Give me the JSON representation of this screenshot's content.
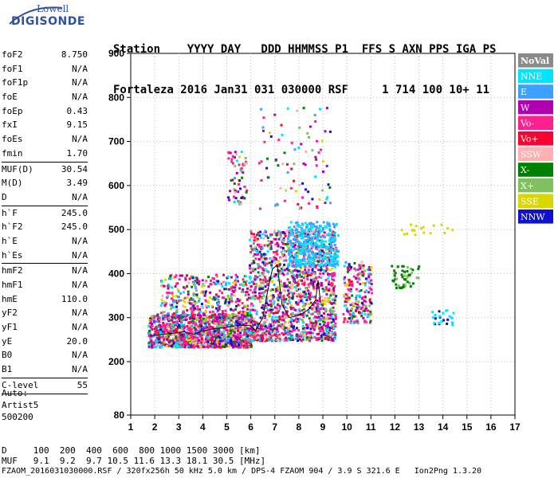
{
  "logo": {
    "top": "Lowell",
    "bottom": "DIGISONDE"
  },
  "header": {
    "line1": "Station    YYYY DAY   DDD HHMMSS P1  FFS S AXN PPS IGA PS",
    "line2": "Fortaleza 2016 Jan31 031 030000 RSF     1 714 100 10+ 11"
  },
  "params": {
    "g1": [
      {
        "name": "foF2",
        "value": "8.750"
      },
      {
        "name": "foF1",
        "value": "N/A"
      },
      {
        "name": "foF1p",
        "value": "N/A"
      },
      {
        "name": "foE",
        "value": "N/A"
      },
      {
        "name": "foEp",
        "value": "0.43"
      },
      {
        "name": "fxI",
        "value": "9.15"
      },
      {
        "name": "foEs",
        "value": "N/A"
      },
      {
        "name": "fmin",
        "value": "1.70"
      }
    ],
    "g2": [
      {
        "name": "MUF(D)",
        "value": "30.54"
      },
      {
        "name": "M(D)",
        "value": "3.49"
      },
      {
        "name": "D",
        "value": "N/A"
      }
    ],
    "g3": [
      {
        "name": "h`F",
        "value": "245.0"
      },
      {
        "name": "h`F2",
        "value": "245.0"
      },
      {
        "name": "h`E",
        "value": "N/A"
      },
      {
        "name": "h`Es",
        "value": "N/A"
      }
    ],
    "g4": [
      {
        "name": "hmF2",
        "value": "N/A"
      },
      {
        "name": "hmF1",
        "value": "N/A"
      },
      {
        "name": "hmE",
        "value": "110.0"
      },
      {
        "name": "yF2",
        "value": "N/A"
      },
      {
        "name": "yF1",
        "value": "N/A"
      },
      {
        "name": "yE",
        "value": "20.0"
      },
      {
        "name": "B0",
        "value": "N/A"
      },
      {
        "name": "B1",
        "value": "N/A"
      }
    ],
    "g5": [
      {
        "name": "C-level",
        "value": "55"
      }
    ]
  },
  "auto": {
    "l1": "Auto:",
    "l2": "Artist5",
    "l3": "500200"
  },
  "footer": {
    "d_line": "D     100  200  400  600  800 1000 1500 3000 [km]",
    "muf_line": "MUF   9.1  9.2  9.7 10.5 11.6 13.3 18.1 30.5 [MHz]",
    "file_line": "FZAOM_2016031030000.RSF / 320fx256h 50 kHz 5.0 km / DPS-4 FZAOM 904 / 3.9 S 321.6 E   Ion2Png 1.3.20"
  },
  "chart_data": {
    "type": "scatter",
    "xlim": [
      1,
      17
    ],
    "ylim": [
      80,
      900
    ],
    "x_ticks": [
      "1",
      "2",
      "3",
      "4",
      "5",
      "6",
      "7",
      "8",
      "9",
      "10",
      "11",
      "12",
      "13",
      "14",
      "15",
      "16",
      "17"
    ],
    "y_ticks": [
      "80",
      "200",
      "300",
      "400",
      "500",
      "600",
      "700",
      "800",
      "900"
    ],
    "grid": true,
    "legend_position": "right",
    "legend": [
      {
        "label": "NoVal",
        "color": "#8a8a8a"
      },
      {
        "label": "NNE",
        "color": "#00e5ff"
      },
      {
        "label": "E",
        "color": "#3ca0ff"
      },
      {
        "label": "W",
        "color": "#b000b0"
      },
      {
        "label": "Vo-",
        "color": "#ff2090"
      },
      {
        "label": "Vo+",
        "color": "#ff0030"
      },
      {
        "label": "SSW",
        "color": "#ffb0b0"
      },
      {
        "label": "X-",
        "color": "#008000"
      },
      {
        "label": "X+",
        "color": "#80c060"
      },
      {
        "label": "SSE",
        "color": "#d8d800"
      },
      {
        "label": "NNW",
        "color": "#1010d0"
      }
    ],
    "trace": {
      "color": "#000000",
      "points": [
        [
          1.8,
          258
        ],
        [
          2.3,
          262
        ],
        [
          2.8,
          265
        ],
        [
          3.2,
          268
        ],
        [
          3.6,
          262
        ],
        [
          4.0,
          270
        ],
        [
          4.5,
          275
        ],
        [
          5.0,
          278
        ],
        [
          5.5,
          283
        ],
        [
          6.0,
          282
        ],
        [
          6.2,
          270
        ],
        [
          6.5,
          300
        ],
        [
          6.7,
          360
        ],
        [
          6.9,
          410
        ],
        [
          7.1,
          420
        ],
        [
          7.3,
          330
        ],
        [
          7.6,
          300
        ],
        [
          8.0,
          305
        ],
        [
          8.4,
          318
        ],
        [
          8.7,
          340
        ],
        [
          8.8,
          385
        ],
        [
          8.9,
          335
        ]
      ]
    },
    "echo_regions": [
      {
        "x": [
          1.7,
          6.0
        ],
        "y": [
          235,
          310
        ],
        "count": 1300
      },
      {
        "x": [
          2.2,
          5.9
        ],
        "y": [
          300,
          400
        ],
        "count": 450
      },
      {
        "x": [
          5.9,
          9.5
        ],
        "y": [
          250,
          500
        ],
        "count": 1500
      },
      {
        "x": [
          7.5,
          9.6
        ],
        "y": [
          420,
          520
        ],
        "count": 350
      },
      {
        "x": [
          9.8,
          11.0
        ],
        "y": [
          290,
          430
        ],
        "count": 220
      },
      {
        "x": [
          11.8,
          13.0
        ],
        "y": [
          370,
          420
        ],
        "count": 50
      },
      {
        "x": [
          5.0,
          5.8
        ],
        "y": [
          560,
          680
        ],
        "count": 60
      },
      {
        "x": [
          6.3,
          9.3
        ],
        "y": [
          550,
          780
        ],
        "count": 90
      },
      {
        "x": [
          13.5,
          14.4
        ],
        "y": [
          285,
          320
        ],
        "count": 25
      },
      {
        "x": [
          12.0,
          14.5
        ],
        "y": [
          490,
          515
        ],
        "count": 18
      }
    ]
  }
}
